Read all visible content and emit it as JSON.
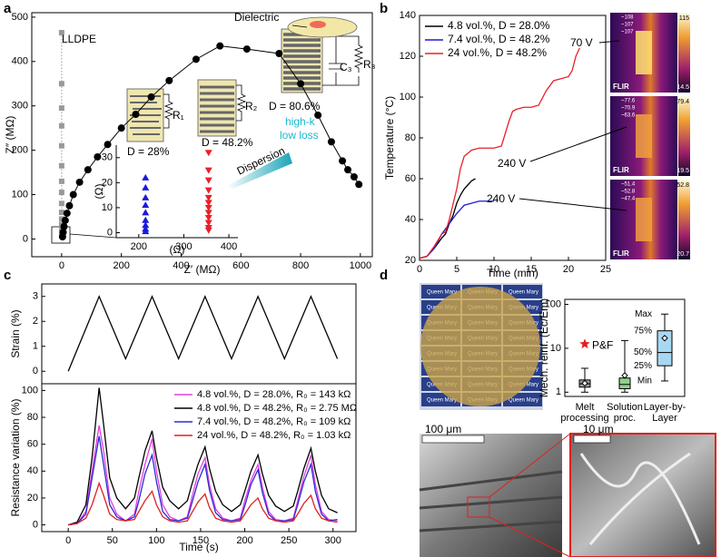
{
  "panel_labels": [
    "a",
    "b",
    "c",
    "d"
  ],
  "chart_data": [
    {
      "type": "scatter",
      "xlabel": "Z′ (MΩ)",
      "ylabel": "Z″ (MΩ)",
      "xlim": [
        -100,
        1040
      ],
      "ylim": [
        -40,
        510
      ],
      "xticks": [
        0,
        200,
        400,
        600,
        800,
        1000
      ],
      "yticks": [
        0,
        100,
        200,
        300,
        400,
        500
      ],
      "series": [
        {
          "marker": "square",
          "color": "#999999",
          "line": "dotted",
          "x": [
            0,
            0,
            0,
            0,
            0,
            0,
            0,
            0,
            0,
            0,
            0,
            0,
            0,
            0
          ],
          "values": [
            465,
            350,
            295,
            255,
            210,
            165,
            130,
            105,
            80,
            60,
            45,
            32,
            20,
            10
          ]
        },
        {
          "marker": "circle",
          "color": "#000000",
          "line": "solid",
          "x": [
            3,
            5,
            8,
            12,
            18,
            26,
            39,
            60,
            88,
            120,
            154,
            200,
            248,
            300,
            360,
            450,
            530,
            620,
            728,
            800,
            858,
            903,
            940,
            958,
            979,
            995
          ],
          "values": [
            5,
            15,
            28,
            42,
            58,
            75,
            100,
            128,
            156,
            185,
            213,
            250,
            281,
            320,
            357,
            405,
            435,
            428,
            418,
            350,
            279,
            219,
            176,
            156,
            140,
            123
          ]
        }
      ],
      "annotations": [
        "LLDPE",
        "Dielectric",
        "D = 28%",
        "D = 48.2%",
        "D = 80.6%",
        "high-k",
        "low loss",
        "Dispersion",
        "R₁",
        "R₂",
        "R₃",
        "C₃"
      ]
    },
    {
      "type": "scatter",
      "xlabel": "(Ω)",
      "ylabel": "(Ω)",
      "xlim": [
        150,
        420
      ],
      "ylim": [
        -2,
        35
      ],
      "xticks": [
        200,
        300,
        400
      ],
      "yticks": [
        0,
        10,
        20,
        30
      ],
      "series": [
        {
          "marker": "triangle",
          "color": "#1a1adb",
          "x": [
            215,
            215,
            215,
            215,
            215,
            215,
            215,
            215,
            215
          ],
          "values": [
            22,
            18,
            14,
            11,
            8,
            5,
            3,
            1.5,
            0.5
          ]
        },
        {
          "marker": "triangle-down",
          "color": "#e8202a",
          "x": [
            355,
            355,
            355,
            355,
            355,
            355,
            355,
            355,
            355,
            355,
            355,
            355
          ],
          "values": [
            32,
            25,
            21,
            17,
            14,
            12,
            10,
            8,
            6,
            4,
            2,
            1
          ]
        }
      ]
    },
    {
      "type": "line",
      "xlabel": "Time (min)",
      "ylabel": "Temperature (°C)",
      "xlim": [
        0,
        25
      ],
      "ylim": [
        20,
        140
      ],
      "xticks": [
        0,
        5,
        10,
        15,
        20,
        25
      ],
      "yticks": [
        20,
        40,
        60,
        80,
        100,
        120,
        140
      ],
      "legend": "top-left",
      "series": [
        {
          "name": "4.8 vol.%, D = 28.0%",
          "color": "#000000",
          "x": [
            0,
            1,
            2,
            3,
            3.5,
            4,
            4.5,
            5,
            5.5,
            6,
            6.5,
            7,
            7.5
          ],
          "values": [
            21,
            22,
            26,
            31,
            33,
            38,
            42,
            48,
            52,
            55,
            57,
            59,
            60
          ]
        },
        {
          "name": "7.4 vol.%, D = 48.2%",
          "color": "#1a1adb",
          "x": [
            0,
            1,
            2,
            3,
            4,
            5,
            6,
            7,
            8,
            9,
            10
          ],
          "values": [
            21,
            22,
            26,
            33,
            38,
            43,
            47,
            48,
            49,
            49,
            49
          ]
        },
        {
          "name": "24 vol.%, D = 48.2%",
          "color": "#e8202a",
          "x": [
            0,
            1,
            2,
            3,
            3.5,
            4,
            5,
            5.5,
            6,
            7,
            8,
            9,
            10,
            11,
            12,
            12.5,
            13,
            14,
            15,
            16,
            17,
            18,
            19,
            20,
            20.5,
            21,
            21.5
          ],
          "values": [
            21,
            22,
            27,
            33,
            34,
            40,
            55,
            65,
            71,
            74,
            75,
            75,
            75,
            76,
            88,
            93,
            94,
            95,
            95,
            96,
            103,
            108,
            109,
            110,
            113,
            120,
            124
          ]
        }
      ],
      "annotations": [
        "70 V",
        "240 V",
        "240 V"
      ]
    },
    {
      "type": "line",
      "ylabel": "Strain (%)",
      "xlim": [
        -30,
        326
      ],
      "ylim": [
        -0.5,
        3.5
      ],
      "yticks": [
        0,
        1,
        2,
        3
      ],
      "x": [
        0,
        35,
        65,
        95,
        125,
        155,
        185,
        215,
        245,
        275,
        305
      ],
      "series": [
        {
          "color": "#000000",
          "values": [
            0,
            3,
            0.5,
            3,
            0.5,
            3,
            0.5,
            3,
            0.5,
            3,
            0.5
          ]
        }
      ]
    },
    {
      "type": "line",
      "xlabel": "Time (s)",
      "ylabel": "Resistance variation (%)",
      "xlim": [
        -30,
        326
      ],
      "ylim": [
        -5,
        105
      ],
      "xticks": [
        0,
        50,
        100,
        150,
        200,
        250,
        300
      ],
      "yticks": [
        0,
        20,
        40,
        60,
        80,
        100
      ],
      "legend": "top-right",
      "x": [
        0,
        10,
        20,
        27,
        35,
        40,
        47,
        55,
        65,
        75,
        80,
        87,
        95,
        100,
        107,
        115,
        125,
        135,
        140,
        147,
        155,
        160,
        167,
        175,
        185,
        195,
        200,
        207,
        215,
        220,
        227,
        235,
        245,
        255,
        260,
        267,
        275,
        280,
        287,
        295,
        305
      ],
      "series": [
        {
          "name": "4.8 vol.%, D = 28.0%, R₀ = 143 kΩ",
          "color": "#e040e0",
          "values": [
            0,
            1,
            10,
            40,
            74,
            55,
            20,
            8,
            3,
            8,
            25,
            45,
            64,
            40,
            15,
            6,
            3,
            6,
            20,
            38,
            50,
            30,
            12,
            5,
            3,
            5,
            18,
            33,
            45,
            28,
            10,
            4,
            3,
            5,
            18,
            36,
            52,
            30,
            10,
            4,
            3
          ]
        },
        {
          "name": "4.8 vol.%, D = 48.2%, R₀ = 2.75 MΩ",
          "color": "#000000",
          "values": [
            0,
            2,
            15,
            50,
            102,
            75,
            35,
            20,
            12,
            20,
            35,
            55,
            70,
            50,
            28,
            18,
            12,
            18,
            30,
            45,
            58,
            42,
            25,
            15,
            10,
            15,
            25,
            40,
            52,
            38,
            22,
            14,
            10,
            14,
            25,
            42,
            57,
            40,
            22,
            12,
            9
          ]
        },
        {
          "name": "7.4 vol.%, D = 48.2%, R₀ = 109 kΩ",
          "color": "#2b2bd6",
          "values": [
            0,
            1,
            8,
            35,
            66,
            45,
            15,
            6,
            3,
            6,
            18,
            38,
            52,
            32,
            10,
            4,
            3,
            5,
            16,
            32,
            45,
            26,
            9,
            4,
            3,
            4,
            14,
            30,
            41,
            24,
            8,
            3,
            3,
            4,
            15,
            32,
            45,
            25,
            8,
            3,
            4
          ]
        },
        {
          "name": "24 vol.%, D = 48.2%, R₀ = 1.03 kΩ",
          "color": "#e02020",
          "values": [
            0,
            1,
            5,
            15,
            31,
            22,
            8,
            4,
            3,
            4,
            10,
            18,
            25,
            15,
            6,
            3,
            2,
            3,
            9,
            17,
            23,
            13,
            5,
            3,
            2,
            3,
            8,
            15,
            20,
            12,
            5,
            3,
            2,
            3,
            8,
            16,
            22,
            12,
            5,
            3,
            2
          ]
        }
      ]
    },
    {
      "type": "box",
      "ylabel": "Mech. reinf. (Ec/Em)",
      "log": true,
      "ylim": [
        0.8,
        130
      ],
      "yticks": [
        1,
        10,
        100
      ],
      "categories": [
        "Melt processing",
        "Solution proc.",
        "Layer-by-Layer"
      ],
      "colors": [
        "#9a9a9a",
        "#8fd18f",
        "#a8d8f0"
      ],
      "boxes": [
        {
          "min": 1.0,
          "q1": 1.3,
          "median": 1.55,
          "q3": 1.9,
          "max": 3.5,
          "mean": 1.6
        },
        {
          "min": 1.0,
          "q1": 1.2,
          "median": 1.5,
          "q3": 2.1,
          "max": 15,
          "mean": 2.4
        },
        {
          "min": 1.8,
          "q1": 4,
          "median": 8,
          "q3": 25,
          "max": 60,
          "mean": 17
        }
      ],
      "highlight": {
        "label": "P&F",
        "value": 12.5
      },
      "box_legend": [
        "Max",
        "75%",
        "50%",
        "25%",
        "Min"
      ]
    }
  ],
  "thermal_images": [
    {
      "readouts": [
        "~108",
        "~107",
        "~107"
      ],
      "max": "115",
      "min": "14.5"
    },
    {
      "readouts": [
        "~77.6",
        "~70.9",
        "~63.6"
      ],
      "max": "79.4",
      "min": "19.5"
    },
    {
      "readouts": [
        "~51.4",
        "~52.8",
        "~47.4"
      ],
      "max": "52.8",
      "min": "20.7"
    }
  ],
  "camera_brand": "FLIR",
  "photo": {
    "tile_text": "Queen Mary"
  },
  "micrographs": [
    {
      "scale_bar": "100 μm"
    },
    {
      "scale_bar": "10 μm"
    }
  ]
}
